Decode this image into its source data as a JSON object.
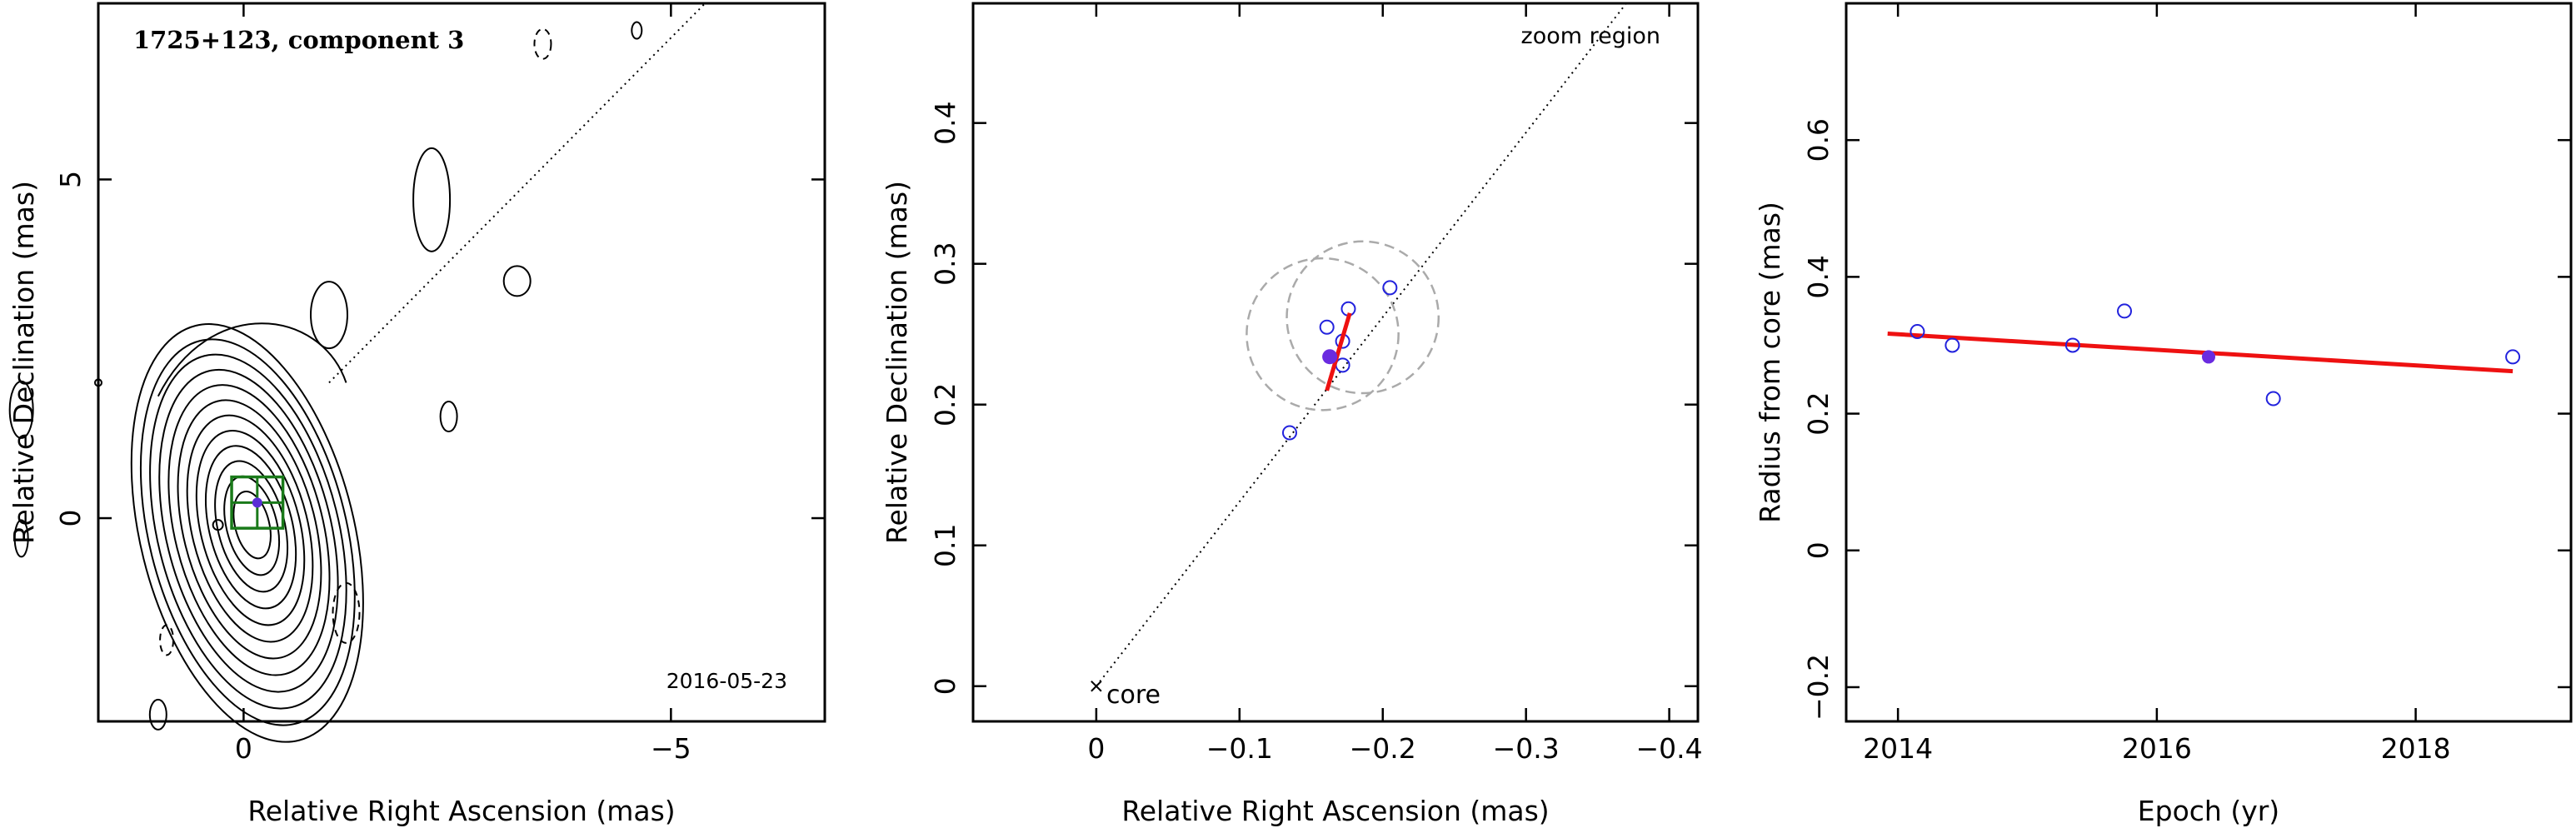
{
  "chart_data": [
    {
      "type": "contour",
      "title": "1725+123, component 3",
      "annotation": "2016-05-23",
      "xlabel": "Relative Right Ascension (mas)",
      "ylabel": "Relative Declination (mas)",
      "xlim": [
        1.7,
        -6.8
      ],
      "ylim": [
        -3.0,
        7.6
      ],
      "xticks": [
        {
          "v": 0,
          "label": "0"
        },
        {
          "v": -5,
          "label": "−5"
        }
      ],
      "yticks": [
        {
          "v": 0,
          "label": "0"
        },
        {
          "v": 5,
          "label": "5"
        }
      ],
      "contour_levels": 12,
      "component": {
        "x": -0.16,
        "y": 0.23,
        "box_half_size": 0.3
      },
      "jet_direction_line": {
        "from": [
          -1.0,
          2.0
        ],
        "to": [
          -5.4,
          7.6
        ]
      },
      "colors": {
        "contour": "#000000",
        "component": "#5a2fd6",
        "box": "#1a7a1a"
      }
    },
    {
      "type": "scatter",
      "annotation": "zoom region",
      "core_label": "core",
      "xlabel": "Relative Right Ascension (mas)",
      "ylabel": "Relative Declination (mas)",
      "xlim": [
        0.086,
        -0.42
      ],
      "ylim": [
        -0.025,
        0.485
      ],
      "xticks": [
        {
          "v": 0,
          "label": "0"
        },
        {
          "v": -0.1,
          "label": "−0.1"
        },
        {
          "v": -0.2,
          "label": "−0.2"
        },
        {
          "v": -0.3,
          "label": "−0.3"
        },
        {
          "v": -0.4,
          "label": "−0.4"
        }
      ],
      "yticks": [
        {
          "v": 0,
          "label": "0"
        },
        {
          "v": 0.1,
          "label": "0.1"
        },
        {
          "v": 0.2,
          "label": "0.2"
        },
        {
          "v": 0.3,
          "label": "0.3"
        },
        {
          "v": 0.4,
          "label": "0.4"
        }
      ],
      "points": [
        {
          "x": -0.135,
          "y": 0.18
        },
        {
          "x": -0.161,
          "y": 0.255
        },
        {
          "x": -0.172,
          "y": 0.245
        },
        {
          "x": -0.176,
          "y": 0.268
        },
        {
          "x": -0.172,
          "y": 0.228
        },
        {
          "x": -0.205,
          "y": 0.283
        }
      ],
      "highlight_point": {
        "x": -0.163,
        "y": 0.234
      },
      "fit_segment": {
        "from": [
          -0.161,
          0.21
        ],
        "to": [
          -0.177,
          0.265
        ]
      },
      "circles": [
        {
          "x": -0.158,
          "y": 0.25,
          "r": 0.053
        },
        {
          "x": -0.186,
          "y": 0.262,
          "r": 0.053
        }
      ],
      "direction_line": {
        "from": [
          0,
          0
        ],
        "to": [
          -0.37,
          0.485
        ]
      },
      "colors": {
        "points": "#2222dd",
        "highlight": "#6a2be0",
        "fit": "#ee1111",
        "circles": "#aaaaaa"
      }
    },
    {
      "type": "scatter",
      "xlabel": "Epoch (yr)",
      "ylabel": "Radius from core (mas)",
      "xlim": [
        2013.6,
        2019.2
      ],
      "ylim": [
        -0.25,
        0.8
      ],
      "xticks": [
        {
          "v": 2014,
          "label": "2014"
        },
        {
          "v": 2016,
          "label": "2016"
        },
        {
          "v": 2018,
          "label": "2018"
        }
      ],
      "yticks": [
        {
          "v": -0.2,
          "label": "−0.2"
        },
        {
          "v": 0,
          "label": "0"
        },
        {
          "v": 0.2,
          "label": "0.2"
        },
        {
          "v": 0.4,
          "label": "0.4"
        },
        {
          "v": 0.6,
          "label": "0.6"
        }
      ],
      "points": [
        {
          "x": 2014.15,
          "y": 0.32
        },
        {
          "x": 2014.42,
          "y": 0.3
        },
        {
          "x": 2015.35,
          "y": 0.3
        },
        {
          "x": 2015.75,
          "y": 0.35
        },
        {
          "x": 2016.9,
          "y": 0.222
        },
        {
          "x": 2018.75,
          "y": 0.283
        }
      ],
      "highlight_point": {
        "x": 2016.4,
        "y": 0.283
      },
      "fit_line": {
        "from": [
          2013.92,
          0.317
        ],
        "to": [
          2018.75,
          0.262
        ]
      },
      "colors": {
        "points": "#2222dd",
        "highlight": "#6a2be0",
        "fit": "#ee1111"
      }
    }
  ]
}
